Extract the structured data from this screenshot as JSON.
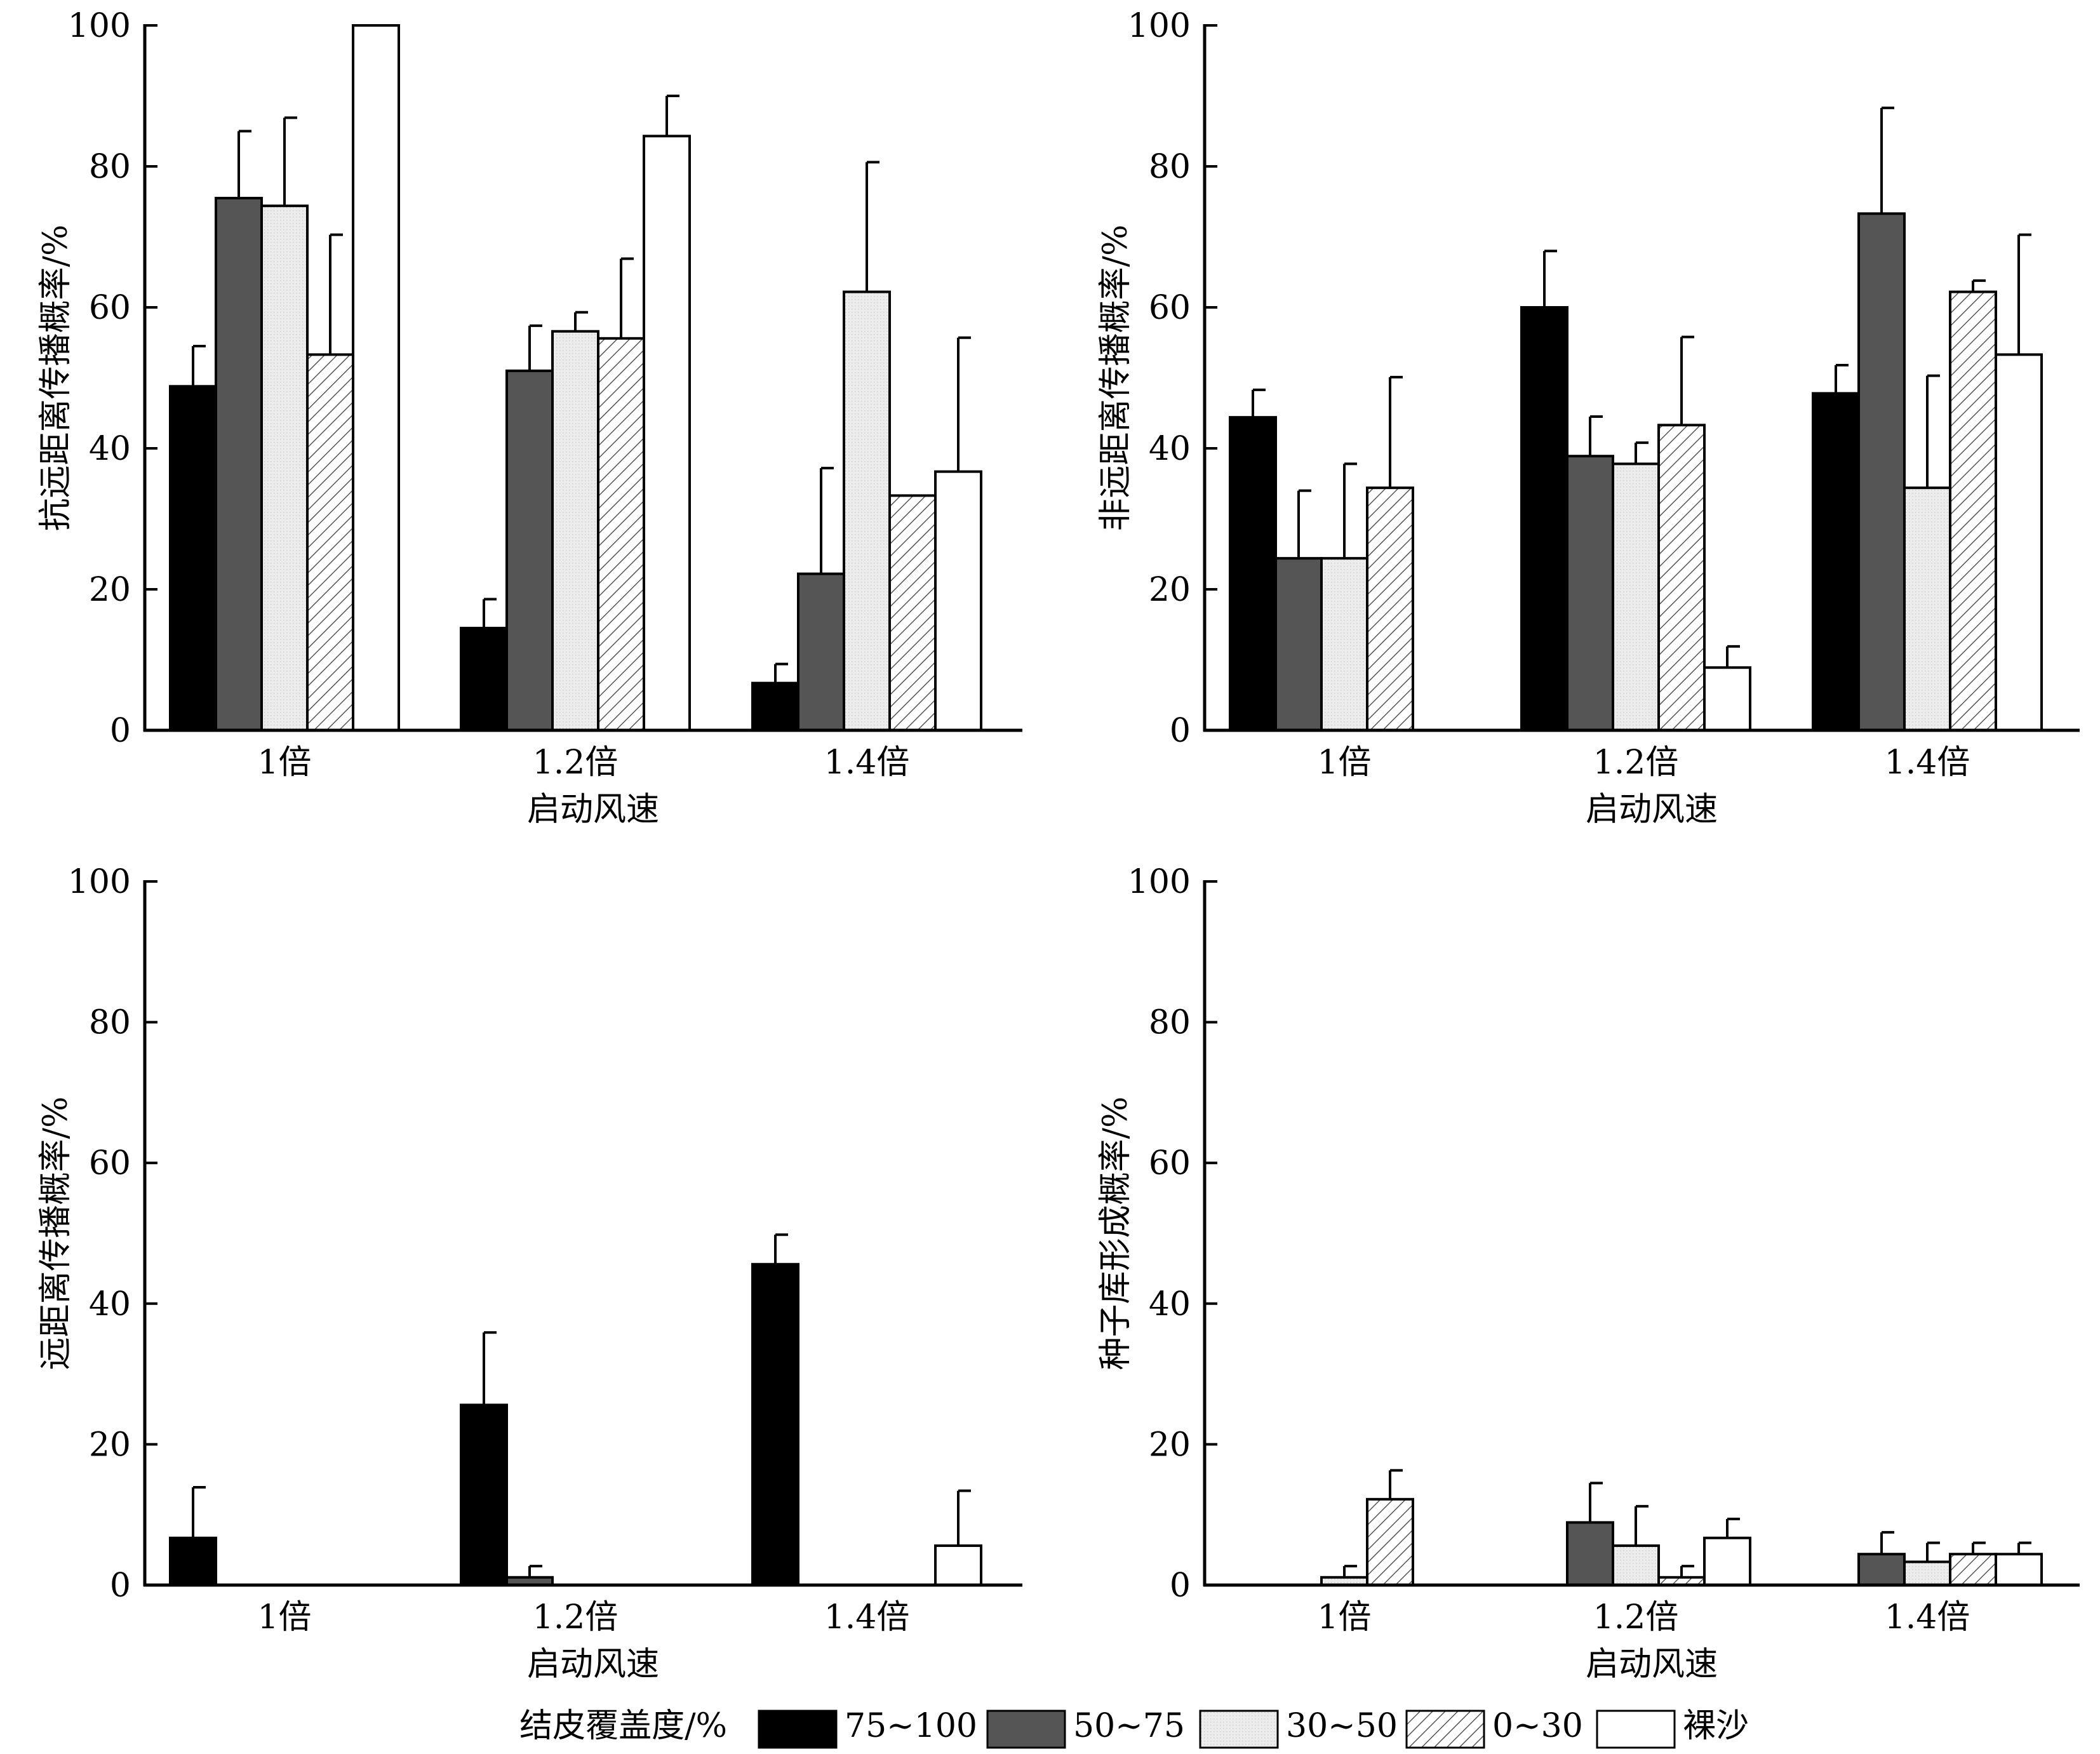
{
  "legend": {
    "title": "结皮覆盖度/%",
    "items": [
      "75~100",
      "50~75",
      "30~50",
      "0~30",
      "裸沙"
    ]
  },
  "chart_data": [
    {
      "type": "bar",
      "categories": [
        "1倍",
        "1.2倍",
        "1.4倍"
      ],
      "xlabel": "启动风速",
      "ylabel": "抗远距离传播概率/%",
      "ylim": [
        0,
        100
      ],
      "yticks": [
        0,
        20,
        40,
        60,
        80,
        100
      ],
      "error_bars": true,
      "series": [
        {
          "name": "75~100",
          "values": [
            48.8,
            14.5,
            6.7
          ],
          "errors": [
            5.7,
            4.1,
            2.7
          ]
        },
        {
          "name": "50~75",
          "values": [
            75.5,
            51.0,
            22.2
          ],
          "errors": [
            9.5,
            6.4,
            15.0
          ]
        },
        {
          "name": "30~50",
          "values": [
            74.4,
            56.6,
            62.2
          ],
          "errors": [
            12.5,
            2.7,
            18.4
          ]
        },
        {
          "name": "0~30",
          "values": [
            53.3,
            55.6,
            33.3
          ],
          "errors": [
            17.0,
            11.3,
            null
          ]
        },
        {
          "name": "裸沙",
          "values": [
            100,
            84.3,
            36.7
          ],
          "errors": [
            null,
            5.7,
            19.0
          ]
        }
      ]
    },
    {
      "type": "bar",
      "categories": [
        "1倍",
        "1.2倍",
        "1.4倍"
      ],
      "xlabel": "启动风速",
      "ylabel": "非远距离传播概率/%",
      "ylim": [
        0,
        100
      ],
      "yticks": [
        0,
        20,
        40,
        60,
        80,
        100
      ],
      "error_bars": true,
      "series": [
        {
          "name": "75~100",
          "values": [
            44.4,
            60.0,
            47.8
          ],
          "errors": [
            3.9,
            8.0,
            4.0
          ]
        },
        {
          "name": "50~75",
          "values": [
            24.4,
            38.9,
            73.3
          ],
          "errors": [
            9.6,
            5.6,
            15.0
          ]
        },
        {
          "name": "30~50",
          "values": [
            24.4,
            37.8,
            34.4
          ],
          "errors": [
            13.4,
            3.0,
            15.9
          ]
        },
        {
          "name": "0~30",
          "values": [
            34.4,
            43.3,
            62.2
          ],
          "errors": [
            15.7,
            12.5,
            1.6
          ]
        },
        {
          "name": "裸沙",
          "values": [
            0,
            8.9,
            53.3
          ],
          "errors": [
            null,
            3.0,
            17.0
          ]
        }
      ]
    },
    {
      "type": "bar",
      "categories": [
        "1倍",
        "1.2倍",
        "1.4倍"
      ],
      "xlabel": "启动风速",
      "ylabel": "远距离传播概率/%",
      "ylim": [
        0,
        100
      ],
      "yticks": [
        0,
        20,
        40,
        60,
        80,
        100
      ],
      "error_bars": true,
      "series": [
        {
          "name": "75~100",
          "values": [
            6.7,
            25.6,
            45.6
          ],
          "errors": [
            7.2,
            10.3,
            4.2
          ]
        },
        {
          "name": "50~75",
          "values": [
            0,
            1.1,
            0
          ],
          "errors": [
            null,
            1.6,
            null
          ]
        },
        {
          "name": "30~50",
          "values": [
            0,
            0,
            0
          ],
          "errors": [
            null,
            null,
            null
          ]
        },
        {
          "name": "0~30",
          "values": [
            0,
            0,
            0
          ],
          "errors": [
            null,
            null,
            null
          ]
        },
        {
          "name": "裸沙",
          "values": [
            0,
            0,
            5.6
          ],
          "errors": [
            null,
            null,
            7.8
          ]
        }
      ]
    },
    {
      "type": "bar",
      "categories": [
        "1倍",
        "1.2倍",
        "1.4倍"
      ],
      "xlabel": "启动风速",
      "ylabel": "种子库形成概率/%",
      "ylim": [
        0,
        100
      ],
      "yticks": [
        0,
        20,
        40,
        60,
        80,
        100
      ],
      "error_bars": true,
      "series": [
        {
          "name": "75~100",
          "values": [
            0,
            0,
            0
          ],
          "errors": [
            null,
            null,
            null
          ]
        },
        {
          "name": "50~75",
          "values": [
            0,
            8.9,
            4.4
          ],
          "errors": [
            null,
            5.6,
            3.1
          ]
        },
        {
          "name": "30~50",
          "values": [
            1.1,
            5.6,
            3.3
          ],
          "errors": [
            1.6,
            5.6,
            2.7
          ]
        },
        {
          "name": "0~30",
          "values": [
            12.2,
            1.1,
            4.4
          ],
          "errors": [
            4.1,
            1.6,
            1.6
          ]
        },
        {
          "name": "裸沙",
          "values": [
            0,
            6.7,
            4.4
          ],
          "errors": [
            null,
            2.7,
            1.6
          ]
        }
      ]
    }
  ]
}
